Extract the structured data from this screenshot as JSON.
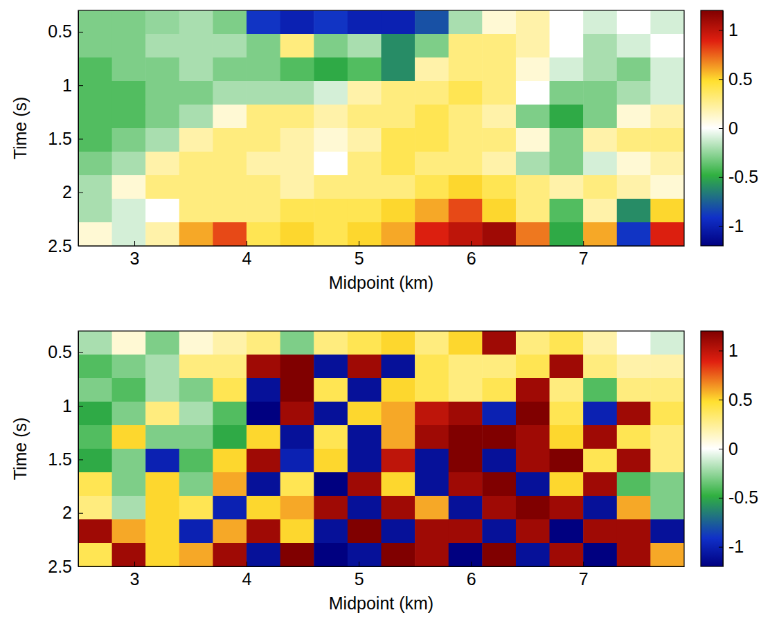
{
  "chart_data": [
    {
      "type": "heatmap",
      "xlabel": "Midpoint (km)",
      "ylabel": "Time (s)",
      "x_edges": [
        2.5,
        2.8,
        3.1,
        3.4,
        3.7,
        4.0,
        4.3,
        4.6,
        4.9,
        5.2,
        5.5,
        5.8,
        6.1,
        6.4,
        6.7,
        7.0,
        7.3,
        7.6,
        7.9
      ],
      "y_edges": [
        0.3,
        0.52,
        0.74,
        0.96,
        1.18,
        1.4,
        1.62,
        1.84,
        2.06,
        2.28,
        2.5
      ],
      "xlim": [
        2.5,
        7.9
      ],
      "xticks": [
        3,
        4,
        5,
        6,
        7
      ],
      "ylim": [
        0.3,
        2.5
      ],
      "yticks": [
        0.5,
        1,
        1.5,
        2,
        2.5
      ],
      "colorbar": {
        "range": [
          -1.2,
          1.2
        ],
        "ticks": [
          -1,
          -0.5,
          0,
          0.5,
          1
        ]
      },
      "values": [
        [
          -0.3,
          -0.3,
          -0.25,
          -0.2,
          -0.3,
          -0.9,
          -1.0,
          -0.9,
          -1.0,
          -1.0,
          -0.8,
          -0.2,
          0.1,
          0.2,
          0.0,
          -0.1,
          0.0,
          -0.1
        ],
        [
          -0.3,
          -0.3,
          -0.2,
          -0.2,
          -0.2,
          -0.3,
          0.3,
          -0.3,
          -0.2,
          -0.6,
          -0.3,
          0.3,
          0.3,
          0.2,
          0.0,
          -0.2,
          -0.1,
          0.0
        ],
        [
          -0.4,
          -0.3,
          -0.3,
          -0.2,
          -0.3,
          -0.3,
          -0.4,
          -0.5,
          -0.4,
          -0.6,
          0.2,
          0.3,
          0.3,
          0.1,
          -0.1,
          -0.2,
          -0.3,
          -0.1
        ],
        [
          -0.4,
          -0.4,
          -0.3,
          -0.3,
          -0.2,
          -0.2,
          -0.2,
          -0.1,
          0.2,
          0.3,
          0.3,
          0.4,
          0.3,
          0.0,
          -0.3,
          -0.3,
          -0.2,
          -0.1
        ],
        [
          -0.4,
          -0.4,
          -0.3,
          -0.2,
          0.1,
          0.3,
          0.3,
          0.2,
          0.3,
          0.3,
          0.4,
          0.3,
          0.2,
          -0.3,
          -0.5,
          -0.3,
          0.1,
          0.2
        ],
        [
          -0.4,
          -0.3,
          -0.2,
          0.2,
          0.3,
          0.3,
          0.2,
          0.1,
          0.2,
          0.4,
          0.4,
          0.3,
          0.3,
          0.1,
          -0.3,
          0.2,
          0.3,
          0.3
        ],
        [
          -0.3,
          -0.2,
          0.2,
          0.3,
          0.3,
          0.2,
          0.2,
          0.0,
          0.3,
          0.4,
          0.3,
          0.3,
          0.2,
          -0.2,
          -0.3,
          -0.1,
          0.1,
          0.2
        ],
        [
          -0.2,
          0.1,
          0.3,
          0.3,
          0.3,
          0.3,
          0.2,
          0.3,
          0.3,
          0.3,
          0.4,
          0.5,
          0.4,
          0.3,
          0.2,
          0.3,
          0.2,
          0.1
        ],
        [
          -0.2,
          -0.1,
          0.0,
          0.3,
          0.3,
          0.3,
          0.4,
          0.4,
          0.4,
          0.5,
          0.6,
          0.8,
          0.5,
          0.3,
          -0.4,
          0.2,
          -0.6,
          0.5
        ],
        [
          0.1,
          -0.1,
          0.2,
          0.6,
          0.8,
          0.4,
          0.5,
          0.4,
          0.5,
          0.6,
          0.9,
          1.0,
          1.1,
          0.7,
          -0.5,
          0.6,
          -0.9,
          0.9
        ]
      ]
    },
    {
      "type": "heatmap",
      "xlabel": "Midpoint (km)",
      "ylabel": "Time (s)",
      "x_edges": [
        2.5,
        2.8,
        3.1,
        3.4,
        3.7,
        4.0,
        4.3,
        4.6,
        4.9,
        5.2,
        5.5,
        5.8,
        6.1,
        6.4,
        6.7,
        7.0,
        7.3,
        7.6,
        7.9
      ],
      "y_edges": [
        0.3,
        0.52,
        0.74,
        0.96,
        1.18,
        1.4,
        1.62,
        1.84,
        2.06,
        2.28,
        2.5
      ],
      "xlim": [
        2.5,
        7.9
      ],
      "xticks": [
        3,
        4,
        5,
        6,
        7
      ],
      "ylim": [
        0.3,
        2.5
      ],
      "yticks": [
        0.5,
        1,
        1.5,
        2,
        2.5
      ],
      "colorbar": {
        "range": [
          -1.2,
          1.2
        ],
        "ticks": [
          -1,
          -0.5,
          0,
          0.5,
          1
        ]
      },
      "values": [
        [
          -0.2,
          0.1,
          -0.3,
          0.1,
          0.2,
          0.3,
          -0.3,
          0.3,
          0.4,
          0.5,
          0.3,
          0.5,
          1.1,
          0.3,
          0.4,
          0.2,
          0.0,
          -0.1
        ],
        [
          -0.4,
          -0.3,
          -0.2,
          0.3,
          0.3,
          1.1,
          1.2,
          -1.1,
          1.1,
          -1.1,
          0.4,
          0.3,
          0.3,
          0.4,
          1.1,
          0.3,
          0.2,
          0.2
        ],
        [
          -0.3,
          -0.4,
          -0.2,
          -0.3,
          0.4,
          -1.1,
          1.2,
          0.4,
          -1.1,
          0.5,
          0.4,
          0.3,
          0.4,
          1.1,
          0.3,
          -0.4,
          0.3,
          0.3
        ],
        [
          -0.5,
          -0.3,
          0.3,
          -0.2,
          -0.4,
          -1.2,
          1.1,
          -1.1,
          0.5,
          0.6,
          1.0,
          1.1,
          -1.0,
          1.2,
          0.4,
          -1.0,
          1.1,
          0.4
        ],
        [
          -0.4,
          0.5,
          -0.3,
          -0.3,
          -0.5,
          0.5,
          -1.1,
          0.4,
          -1.1,
          0.6,
          1.1,
          1.2,
          1.2,
          1.1,
          0.5,
          1.1,
          0.4,
          0.3
        ],
        [
          -0.5,
          -0.3,
          -1.0,
          -0.4,
          0.5,
          1.1,
          -1.0,
          0.5,
          -1.1,
          1.0,
          -1.1,
          1.2,
          -1.1,
          1.1,
          1.2,
          0.4,
          1.1,
          0.3
        ],
        [
          0.4,
          -0.3,
          0.5,
          -0.3,
          0.6,
          -1.1,
          0.4,
          -1.2,
          1.1,
          0.5,
          -1.1,
          1.1,
          1.2,
          -1.1,
          0.5,
          1.1,
          -0.4,
          -0.3
        ],
        [
          0.3,
          -0.2,
          0.5,
          0.4,
          -1.0,
          0.5,
          0.6,
          1.1,
          -1.1,
          1.1,
          0.6,
          -1.1,
          1.1,
          1.2,
          1.1,
          -1.1,
          0.6,
          -0.3
        ],
        [
          1.1,
          0.6,
          0.5,
          -1.0,
          0.6,
          1.1,
          0.5,
          -1.1,
          1.2,
          -1.1,
          1.1,
          1.1,
          -1.1,
          1.1,
          -1.2,
          1.1,
          1.1,
          -1.1
        ],
        [
          0.4,
          1.1,
          0.5,
          0.6,
          1.1,
          -1.1,
          1.2,
          -1.2,
          -1.1,
          1.2,
          1.1,
          -1.2,
          1.2,
          -1.1,
          1.1,
          -1.2,
          1.1,
          0.6
        ]
      ]
    }
  ]
}
